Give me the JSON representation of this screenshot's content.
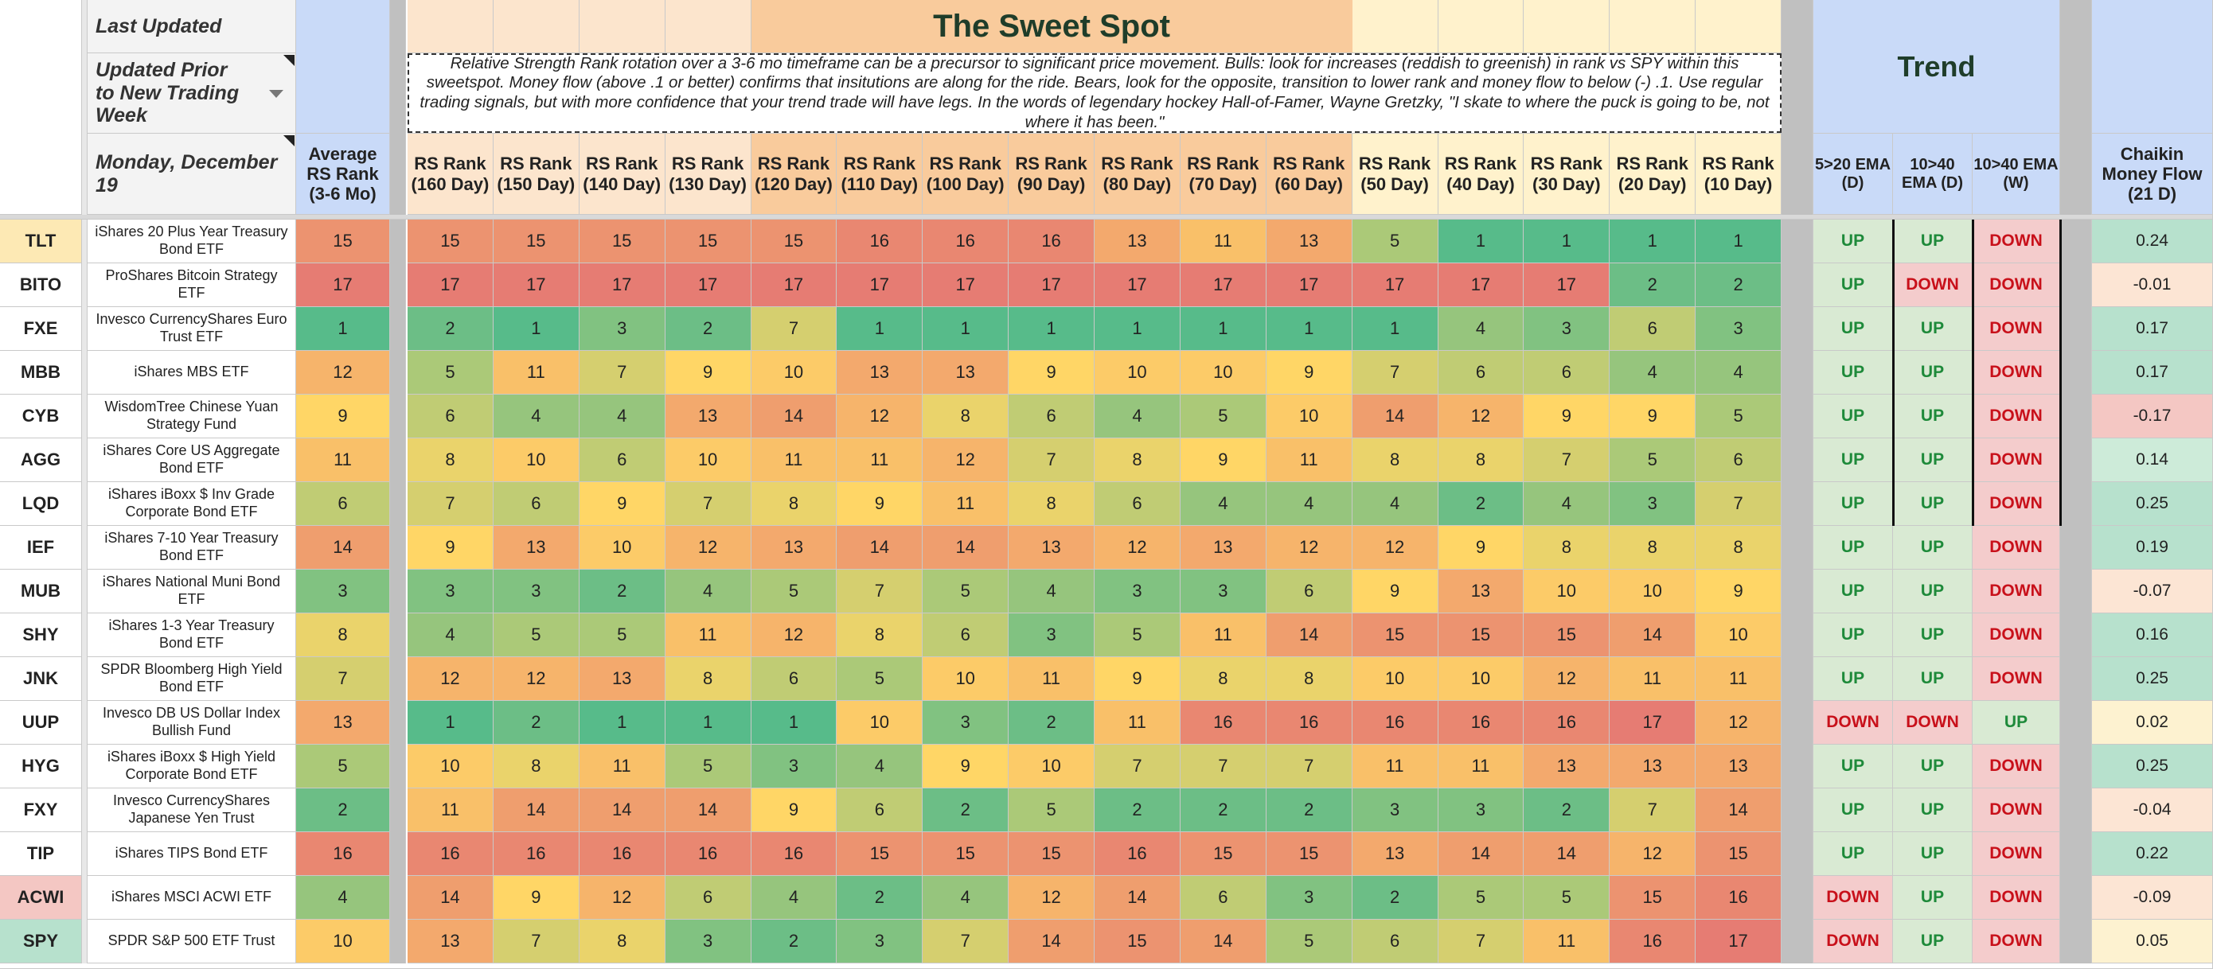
{
  "header": {
    "last_updated_label": "Last Updated",
    "updated_prior_label": "Updated Prior to New Trading Week",
    "date_label": "Monday, December 19",
    "sweet_spot_title": "The Sweet Spot",
    "trend_title": "Trend",
    "description": "Relative Strength Rank rotation over a 3-6 mo timeframe can be a precursor to significant price movement.  Bulls: look for increases (reddish to greenish) in rank vs SPY within this sweetspot. Money flow (above .1 or better) confirms that insitutions are along for the ride. Bears, look for the opposite, transition to lower rank and money flow to below (-) .1.  Use regular trading signals, but with more confidence that your trend trade will have legs. In the words of legendary hockey Hall-of-Famer, Wayne Gretzky, \"I skate to where the puck is going to be, not where it has been.\""
  },
  "columns": {
    "avg": "Average RS Rank (3-6 Mo)",
    "rs": [
      "RS Rank (160 Day)",
      "RS Rank (150 Day)",
      "RS Rank (140 Day)",
      "RS Rank (130 Day)",
      "RS Rank (120 Day)",
      "RS Rank (110 Day)",
      "RS Rank (100 Day)",
      "RS Rank (90 Day)",
      "RS Rank (80 Day)",
      "RS Rank (70 Day)",
      "RS Rank (60 Day)",
      "RS Rank (50 Day)",
      "RS Rank (40 Day)",
      "RS Rank (30 Day)",
      "RS Rank (20 Day)",
      "RS Rank (10 Day)"
    ],
    "trend": [
      "5>20 EMA (D)",
      "10>40 EMA (D)",
      "10>40 EMA (W)"
    ],
    "cmf": "Chaikin Money Flow (21 D)"
  },
  "rows": [
    {
      "ticker": "TLT",
      "name": "iShares 20 Plus Year Treasury Bond ETF",
      "avg": 15,
      "ranks": [
        15,
        15,
        15,
        15,
        15,
        16,
        16,
        16,
        13,
        11,
        13,
        5,
        1,
        1,
        1,
        1
      ],
      "trend": [
        "UP",
        "UP",
        "DOWN"
      ],
      "cmf": "0.24",
      "ticker_bg": "#fde9b4"
    },
    {
      "ticker": "BITO",
      "name": "ProShares Bitcoin Strategy ETF",
      "avg": 17,
      "ranks": [
        17,
        17,
        17,
        17,
        17,
        17,
        17,
        17,
        17,
        17,
        17,
        17,
        17,
        17,
        2,
        2
      ],
      "trend": [
        "UP",
        "DOWN",
        "DOWN"
      ],
      "cmf": "-0.01",
      "ticker_bg": "#ffffff"
    },
    {
      "ticker": "FXE",
      "name": "Invesco CurrencyShares Euro Trust ETF",
      "avg": 1,
      "ranks": [
        2,
        1,
        3,
        2,
        7,
        1,
        1,
        1,
        1,
        1,
        1,
        1,
        4,
        3,
        6,
        3
      ],
      "trend": [
        "UP",
        "UP",
        "DOWN"
      ],
      "cmf": "0.17",
      "ticker_bg": "#ffffff"
    },
    {
      "ticker": "MBB",
      "name": "iShares MBS ETF",
      "avg": 12,
      "ranks": [
        5,
        11,
        7,
        9,
        10,
        13,
        13,
        9,
        10,
        10,
        9,
        7,
        6,
        6,
        4,
        4
      ],
      "trend": [
        "UP",
        "UP",
        "DOWN"
      ],
      "cmf": "0.17",
      "ticker_bg": "#ffffff"
    },
    {
      "ticker": "CYB",
      "name": "WisdomTree Chinese Yuan Strategy Fund",
      "avg": 9,
      "ranks": [
        6,
        4,
        4,
        13,
        14,
        12,
        8,
        6,
        4,
        5,
        10,
        14,
        12,
        9,
        9,
        5
      ],
      "trend": [
        "UP",
        "UP",
        "DOWN"
      ],
      "cmf": "-0.17",
      "ticker_bg": "#ffffff"
    },
    {
      "ticker": "AGG",
      "name": "iShares Core US Aggregate Bond ETF",
      "avg": 11,
      "ranks": [
        8,
        10,
        6,
        10,
        11,
        11,
        12,
        7,
        8,
        9,
        11,
        8,
        8,
        7,
        5,
        6
      ],
      "trend": [
        "UP",
        "UP",
        "DOWN"
      ],
      "cmf": "0.14",
      "ticker_bg": "#ffffff"
    },
    {
      "ticker": "LQD",
      "name": "iShares iBoxx $ Inv Grade Corporate Bond ETF",
      "avg": 6,
      "ranks": [
        7,
        6,
        9,
        7,
        8,
        9,
        11,
        8,
        6,
        4,
        4,
        4,
        2,
        4,
        3,
        7
      ],
      "trend": [
        "UP",
        "UP",
        "DOWN"
      ],
      "cmf": "0.25",
      "ticker_bg": "#ffffff"
    },
    {
      "ticker": "IEF",
      "name": "iShares 7-10 Year Treasury Bond ETF",
      "avg": 14,
      "ranks": [
        9,
        13,
        10,
        12,
        13,
        14,
        14,
        13,
        12,
        13,
        12,
        12,
        9,
        8,
        8,
        8
      ],
      "trend": [
        "UP",
        "UP",
        "DOWN"
      ],
      "cmf": "0.19",
      "ticker_bg": "#ffffff"
    },
    {
      "ticker": "MUB",
      "name": "iShares National Muni Bond ETF",
      "avg": 3,
      "ranks": [
        3,
        3,
        2,
        4,
        5,
        7,
        5,
        4,
        3,
        3,
        6,
        9,
        13,
        10,
        10,
        9
      ],
      "trend": [
        "UP",
        "UP",
        "DOWN"
      ],
      "cmf": "-0.07",
      "ticker_bg": "#ffffff"
    },
    {
      "ticker": "SHY",
      "name": "iShares 1-3 Year Treasury Bond ETF",
      "avg": 8,
      "ranks": [
        4,
        5,
        5,
        11,
        12,
        8,
        6,
        3,
        5,
        11,
        14,
        15,
        15,
        15,
        14,
        10
      ],
      "trend": [
        "UP",
        "UP",
        "DOWN"
      ],
      "cmf": "0.16",
      "ticker_bg": "#ffffff"
    },
    {
      "ticker": "JNK",
      "name": "SPDR Bloomberg High Yield Bond ETF",
      "avg": 7,
      "ranks": [
        12,
        12,
        13,
        8,
        6,
        5,
        10,
        11,
        9,
        8,
        8,
        10,
        10,
        12,
        11,
        11
      ],
      "trend": [
        "UP",
        "UP",
        "DOWN"
      ],
      "cmf": "0.25",
      "ticker_bg": "#ffffff"
    },
    {
      "ticker": "UUP",
      "name": "Invesco DB US Dollar Index Bullish Fund",
      "avg": 13,
      "ranks": [
        1,
        2,
        1,
        1,
        1,
        10,
        3,
        2,
        11,
        16,
        16,
        16,
        16,
        16,
        17,
        12
      ],
      "trend": [
        "DOWN",
        "DOWN",
        "UP"
      ],
      "cmf": "0.02",
      "ticker_bg": "#ffffff"
    },
    {
      "ticker": "HYG",
      "name": "iShares iBoxx $ High Yield Corporate Bond ETF",
      "avg": 5,
      "ranks": [
        10,
        8,
        11,
        5,
        3,
        4,
        9,
        10,
        7,
        7,
        7,
        11,
        11,
        13,
        13,
        13
      ],
      "trend": [
        "UP",
        "UP",
        "DOWN"
      ],
      "cmf": "0.25",
      "ticker_bg": "#ffffff"
    },
    {
      "ticker": "FXY",
      "name": "Invesco CurrencyShares Japanese Yen Trust",
      "avg": 2,
      "ranks": [
        11,
        14,
        14,
        14,
        9,
        6,
        2,
        5,
        2,
        2,
        2,
        3,
        3,
        2,
        7,
        14
      ],
      "trend": [
        "UP",
        "UP",
        "DOWN"
      ],
      "cmf": "-0.04",
      "ticker_bg": "#ffffff"
    },
    {
      "ticker": "TIP",
      "name": "iShares TIPS Bond ETF",
      "avg": 16,
      "ranks": [
        16,
        16,
        16,
        16,
        16,
        15,
        15,
        15,
        16,
        15,
        15,
        13,
        14,
        14,
        12,
        15
      ],
      "trend": [
        "UP",
        "UP",
        "DOWN"
      ],
      "cmf": "0.22",
      "ticker_bg": "#ffffff"
    },
    {
      "ticker": "ACWI",
      "name": "iShares MSCI ACWI ETF",
      "avg": 4,
      "ranks": [
        14,
        9,
        12,
        6,
        4,
        2,
        4,
        12,
        14,
        6,
        3,
        2,
        5,
        5,
        15,
        16
      ],
      "trend": [
        "DOWN",
        "UP",
        "DOWN"
      ],
      "cmf": "-0.09",
      "ticker_bg": "#f4c7c3"
    },
    {
      "ticker": "SPY",
      "name": "SPDR S&P 500 ETF Trust",
      "avg": 10,
      "ranks": [
        13,
        7,
        8,
        3,
        2,
        3,
        7,
        14,
        15,
        14,
        5,
        6,
        7,
        11,
        16,
        17
      ],
      "trend": [
        "DOWN",
        "UP",
        "DOWN"
      ],
      "cmf": "0.05",
      "ticker_bg": "#b7e1cd"
    }
  ]
}
